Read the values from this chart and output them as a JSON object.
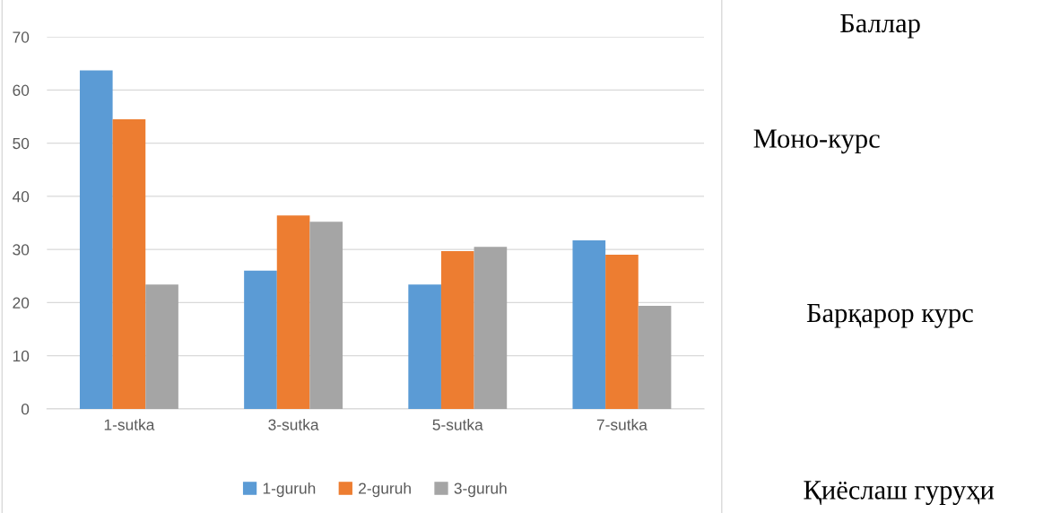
{
  "chart_data": {
    "type": "bar",
    "categories": [
      "1-sutka",
      "3-sutka",
      "5-sutka",
      "7-sutka"
    ],
    "series": [
      {
        "name": "1-guruh",
        "color": "#5b9bd5",
        "values": [
          63.7,
          26.0,
          23.4,
          31.7
        ]
      },
      {
        "name": "2-guruh",
        "color": "#ed7d31",
        "values": [
          54.5,
          36.4,
          29.7,
          29.0
        ]
      },
      {
        "name": "3-guruh",
        "color": "#a5a5a5",
        "values": [
          23.4,
          35.2,
          30.5,
          19.4
        ]
      }
    ],
    "ylim": [
      0,
      70
    ],
    "yticks": [
      0,
      10,
      20,
      30,
      40,
      50,
      60,
      70
    ],
    "grid": "y",
    "legend": "bottom",
    "annotations": [
      "Баллар",
      "Моно-курс",
      "Барқарор курс",
      "Қиёслаш гуруҳи"
    ]
  }
}
